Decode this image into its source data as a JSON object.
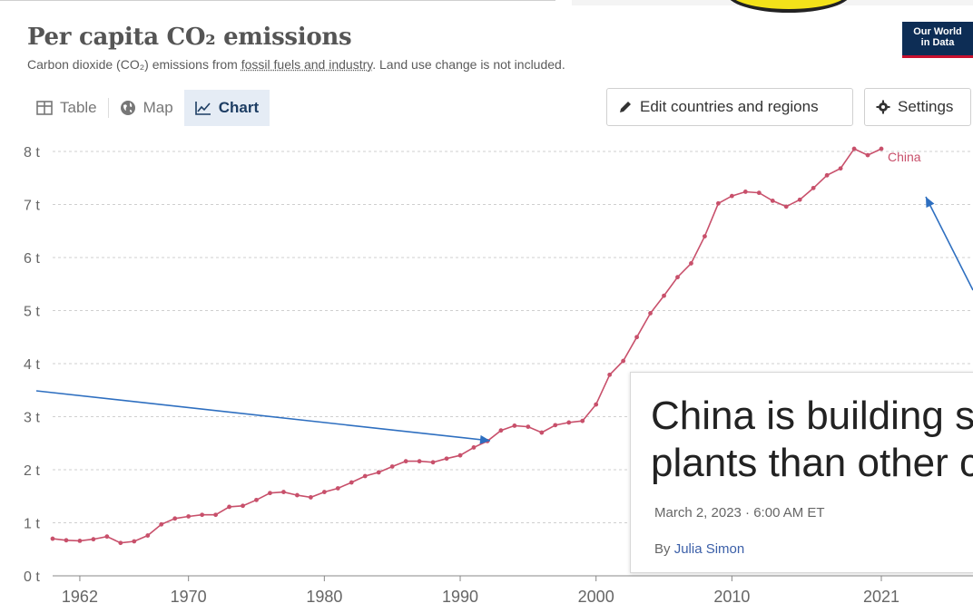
{
  "header": {
    "title": "Per capita CO₂ emissions",
    "subtitle_prefix": "Carbon dioxide (CO₂) emissions from ",
    "subtitle_link": "fossil fuels and industry",
    "subtitle_suffix": ". Land use change is not included.",
    "logo_line1": "Our World",
    "logo_line2": "in Data"
  },
  "tabs": [
    {
      "label": "Table",
      "icon": "table-icon",
      "active": false
    },
    {
      "label": "Map",
      "icon": "globe-icon",
      "active": false
    },
    {
      "label": "Chart",
      "icon": "line-chart-icon",
      "active": true
    }
  ],
  "buttons": {
    "edit": "Edit countries and regions",
    "settings": "Settings"
  },
  "article": {
    "headline_line1": "China is building s",
    "headline_line2": "plants than other c",
    "date": "March 2, 2023 · 6:00 AM ET",
    "byline_prefix": "By ",
    "author": "Julia Simon"
  },
  "colors": {
    "series": "#c8506b",
    "arrow": "#2e6fc0",
    "accent": "#1d3d63"
  },
  "chart_data": {
    "type": "line",
    "title": "Per capita CO₂ emissions",
    "y_ticks": [
      "0 t",
      "1 t",
      "2 t",
      "3 t",
      "4 t",
      "5 t",
      "6 t",
      "7 t",
      "8 t"
    ],
    "x_ticks": [
      "1962",
      "1970",
      "1980",
      "1990",
      "2000",
      "2010",
      "2021"
    ],
    "ylim": [
      0,
      8
    ],
    "xlim": [
      1960,
      2021
    ],
    "grid": true,
    "series": [
      {
        "name": "China",
        "x": [
          1960,
          1961,
          1962,
          1963,
          1964,
          1965,
          1966,
          1967,
          1968,
          1969,
          1970,
          1971,
          1972,
          1973,
          1974,
          1975,
          1976,
          1977,
          1978,
          1979,
          1980,
          1981,
          1982,
          1983,
          1984,
          1985,
          1986,
          1987,
          1988,
          1989,
          1990,
          1991,
          1992,
          1993,
          1994,
          1995,
          1996,
          1997,
          1998,
          1999,
          2000,
          2001,
          2002,
          2003,
          2004,
          2005,
          2006,
          2007,
          2008,
          2009,
          2010,
          2011,
          2012,
          2013,
          2014,
          2015,
          2016,
          2017,
          2018,
          2019,
          2020,
          2021
        ],
        "y": [
          0.7,
          0.67,
          0.66,
          0.69,
          0.74,
          0.62,
          0.65,
          0.76,
          0.97,
          1.08,
          1.12,
          1.15,
          1.15,
          1.3,
          1.32,
          1.43,
          1.56,
          1.58,
          1.52,
          1.48,
          1.58,
          1.65,
          1.76,
          1.88,
          1.95,
          2.06,
          2.16,
          2.16,
          2.14,
          2.21,
          2.27,
          2.42,
          2.54,
          2.74,
          2.83,
          2.81,
          2.7,
          2.84,
          2.89,
          2.92,
          3.23,
          3.79,
          4.05,
          4.5,
          4.95,
          5.28,
          5.63,
          5.89,
          6.4,
          7.02,
          7.16,
          7.24,
          7.22,
          7.07,
          6.96,
          7.09,
          7.31,
          7.55,
          7.68,
          8.05,
          7.93,
          8.05
        ]
      }
    ]
  }
}
